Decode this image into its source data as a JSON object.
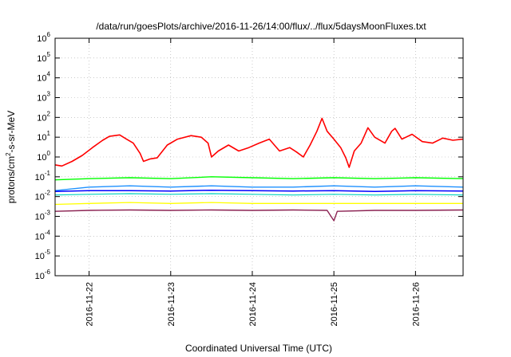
{
  "chart_data": {
    "type": "line",
    "title": "/data/run/goesPlots/archive/2016-11-26/14:00/flux/../flux/5daysMoonFluxes.txt",
    "xlabel": "Coordinated Universal Time (UTC)",
    "ylabel": {
      "base": "protons/cm",
      "sup": "2",
      "rest": "-s-sr-MeV"
    },
    "y_scale": "log",
    "ylim": [
      1e-06,
      1000000.0
    ],
    "y_ticks": [
      {
        "value": 1e-06,
        "base": "10",
        "exp": "-6"
      },
      {
        "value": 1e-05,
        "base": "10",
        "exp": "-5"
      },
      {
        "value": 0.0001,
        "base": "10",
        "exp": "-4"
      },
      {
        "value": 0.001,
        "base": "10",
        "exp": "-3"
      },
      {
        "value": 0.01,
        "base": "10",
        "exp": "-2"
      },
      {
        "value": 0.1,
        "base": "10",
        "exp": "-1"
      },
      {
        "value": 1,
        "base": "10",
        "exp": "0"
      },
      {
        "value": 10,
        "base": "10",
        "exp": "1"
      },
      {
        "value": 100,
        "base": "10",
        "exp": "2"
      },
      {
        "value": 1000,
        "base": "10",
        "exp": "3"
      },
      {
        "value": 10000,
        "base": "10",
        "exp": "4"
      },
      {
        "value": 100000,
        "base": "10",
        "exp": "5"
      },
      {
        "value": 1000000,
        "base": "10",
        "exp": "6"
      }
    ],
    "xlim": [
      "2016-11-21T14:00",
      "2016-11-26T14:00"
    ],
    "x_ticks": [
      "2016-11-22",
      "2016-11-23",
      "2016-11-24",
      "2016-11-25",
      "2016-11-26"
    ],
    "grid": true,
    "series": [
      {
        "color": "#ff0000",
        "stroke": 1.6,
        "points": [
          [
            "2016-11-21T14:00",
            0.4
          ],
          [
            "2016-11-21T16:00",
            0.35
          ],
          [
            "2016-11-21T19:00",
            0.6
          ],
          [
            "2016-11-21T22:00",
            1.2
          ],
          [
            "2016-11-22T01:00",
            3
          ],
          [
            "2016-11-22T04:00",
            7
          ],
          [
            "2016-11-22T06:00",
            11
          ],
          [
            "2016-11-22T09:00",
            13
          ],
          [
            "2016-11-22T11:00",
            8
          ],
          [
            "2016-11-22T13:00",
            5
          ],
          [
            "2016-11-22T15:00",
            1.5
          ],
          [
            "2016-11-22T16:00",
            0.6
          ],
          [
            "2016-11-22T18:00",
            0.8
          ],
          [
            "2016-11-22T20:00",
            0.9
          ],
          [
            "2016-11-22T23:00",
            4
          ],
          [
            "2016-11-23T02:00",
            8
          ],
          [
            "2016-11-23T06:00",
            12
          ],
          [
            "2016-11-23T09:00",
            10
          ],
          [
            "2016-11-23T11:00",
            5
          ],
          [
            "2016-11-23T12:00",
            1
          ],
          [
            "2016-11-23T14:00",
            2
          ],
          [
            "2016-11-23T17:00",
            4
          ],
          [
            "2016-11-23T20:00",
            2
          ],
          [
            "2016-11-23T23:00",
            3
          ],
          [
            "2016-11-24T02:00",
            5
          ],
          [
            "2016-11-24T05:00",
            8
          ],
          [
            "2016-11-24T08:00",
            2
          ],
          [
            "2016-11-24T11:00",
            3
          ],
          [
            "2016-11-24T13:00",
            1.8
          ],
          [
            "2016-11-24T15:00",
            1
          ],
          [
            "2016-11-24T17:00",
            4
          ],
          [
            "2016-11-24T19:00",
            20
          ],
          [
            "2016-11-24T20:30",
            90
          ],
          [
            "2016-11-24T22:00",
            20
          ],
          [
            "2016-11-25T00:00",
            8
          ],
          [
            "2016-11-25T02:00",
            3
          ],
          [
            "2016-11-25T03:30",
            0.9
          ],
          [
            "2016-11-25T04:30",
            0.3
          ],
          [
            "2016-11-25T06:00",
            2
          ],
          [
            "2016-11-25T08:00",
            5
          ],
          [
            "2016-11-25T10:00",
            30
          ],
          [
            "2016-11-25T12:00",
            10
          ],
          [
            "2016-11-25T15:00",
            5
          ],
          [
            "2016-11-25T17:00",
            20
          ],
          [
            "2016-11-25T18:00",
            28
          ],
          [
            "2016-11-25T20:00",
            8
          ],
          [
            "2016-11-25T23:00",
            14
          ],
          [
            "2016-11-26T02:00",
            6
          ],
          [
            "2016-11-26T05:00",
            5
          ],
          [
            "2016-11-26T08:00",
            9
          ],
          [
            "2016-11-26T11:00",
            7
          ],
          [
            "2016-11-26T14:00",
            8
          ]
        ]
      },
      {
        "color": "#00ff00",
        "stroke": 1.4,
        "points": [
          [
            "2016-11-21T14:00",
            0.07
          ],
          [
            "2016-11-22T00:00",
            0.08
          ],
          [
            "2016-11-22T12:00",
            0.09
          ],
          [
            "2016-11-23T00:00",
            0.08
          ],
          [
            "2016-11-23T12:00",
            0.1
          ],
          [
            "2016-11-24T00:00",
            0.09
          ],
          [
            "2016-11-24T12:00",
            0.08
          ],
          [
            "2016-11-25T00:00",
            0.09
          ],
          [
            "2016-11-25T12:00",
            0.08
          ],
          [
            "2016-11-26T00:00",
            0.09
          ],
          [
            "2016-11-26T14:00",
            0.08
          ]
        ]
      },
      {
        "color": "#00d2c0",
        "stroke": 1.2,
        "points": [
          [
            "2016-11-21T14:00",
            0.012
          ],
          [
            "2016-11-22T00:00",
            0.013
          ],
          [
            "2016-11-22T12:00",
            0.014
          ],
          [
            "2016-11-23T00:00",
            0.013
          ],
          [
            "2016-11-23T12:00",
            0.014
          ],
          [
            "2016-11-24T00:00",
            0.013
          ],
          [
            "2016-11-24T12:00",
            0.012
          ],
          [
            "2016-11-25T00:00",
            0.013
          ],
          [
            "2016-11-25T12:00",
            0.012
          ],
          [
            "2016-11-26T00:00",
            0.013
          ],
          [
            "2016-11-26T14:00",
            0.012
          ]
        ]
      },
      {
        "color": "#1e90ff",
        "stroke": 1.4,
        "points": [
          [
            "2016-11-21T14:00",
            0.02
          ],
          [
            "2016-11-22T00:00",
            0.03
          ],
          [
            "2016-11-22T12:00",
            0.035
          ],
          [
            "2016-11-23T00:00",
            0.03
          ],
          [
            "2016-11-23T12:00",
            0.035
          ],
          [
            "2016-11-24T00:00",
            0.03
          ],
          [
            "2016-11-24T12:00",
            0.03
          ],
          [
            "2016-11-25T00:00",
            0.035
          ],
          [
            "2016-11-25T12:00",
            0.03
          ],
          [
            "2016-11-26T00:00",
            0.035
          ],
          [
            "2016-11-26T14:00",
            0.03
          ]
        ]
      },
      {
        "color": "#0000ff",
        "stroke": 1.5,
        "points": [
          [
            "2016-11-21T14:00",
            0.018
          ],
          [
            "2016-11-22T00:00",
            0.02
          ],
          [
            "2016-11-22T12:00",
            0.02
          ],
          [
            "2016-11-23T00:00",
            0.019
          ],
          [
            "2016-11-23T12:00",
            0.021
          ],
          [
            "2016-11-24T00:00",
            0.02
          ],
          [
            "2016-11-24T12:00",
            0.019
          ],
          [
            "2016-11-25T00:00",
            0.02
          ],
          [
            "2016-11-25T12:00",
            0.018
          ],
          [
            "2016-11-26T00:00",
            0.02
          ],
          [
            "2016-11-26T14:00",
            0.019
          ]
        ]
      },
      {
        "color": "#ffff00",
        "stroke": 1.3,
        "points": [
          [
            "2016-11-21T14:00",
            0.004
          ],
          [
            "2016-11-22T00:00",
            0.0045
          ],
          [
            "2016-11-22T12:00",
            0.005
          ],
          [
            "2016-11-23T00:00",
            0.0045
          ],
          [
            "2016-11-23T12:00",
            0.005
          ],
          [
            "2016-11-24T00:00",
            0.0045
          ],
          [
            "2016-11-24T12:00",
            0.0045
          ],
          [
            "2016-11-25T00:00",
            0.0045
          ],
          [
            "2016-11-25T12:00",
            0.0045
          ],
          [
            "2016-11-26T00:00",
            0.0045
          ],
          [
            "2016-11-26T14:00",
            0.0045
          ]
        ]
      },
      {
        "color": "#8b2252",
        "stroke": 1.4,
        "points": [
          [
            "2016-11-21T14:00",
            0.0018
          ],
          [
            "2016-11-22T00:00",
            0.002
          ],
          [
            "2016-11-22T12:00",
            0.0021
          ],
          [
            "2016-11-23T00:00",
            0.002
          ],
          [
            "2016-11-23T12:00",
            0.0021
          ],
          [
            "2016-11-24T00:00",
            0.002
          ],
          [
            "2016-11-24T12:00",
            0.0021
          ],
          [
            "2016-11-24T22:00",
            0.002
          ],
          [
            "2016-11-25T00:00",
            0.0006
          ],
          [
            "2016-11-25T01:00",
            0.0018
          ],
          [
            "2016-11-25T12:00",
            0.002
          ],
          [
            "2016-11-26T00:00",
            0.002
          ],
          [
            "2016-11-26T14:00",
            0.0021
          ]
        ]
      }
    ]
  }
}
